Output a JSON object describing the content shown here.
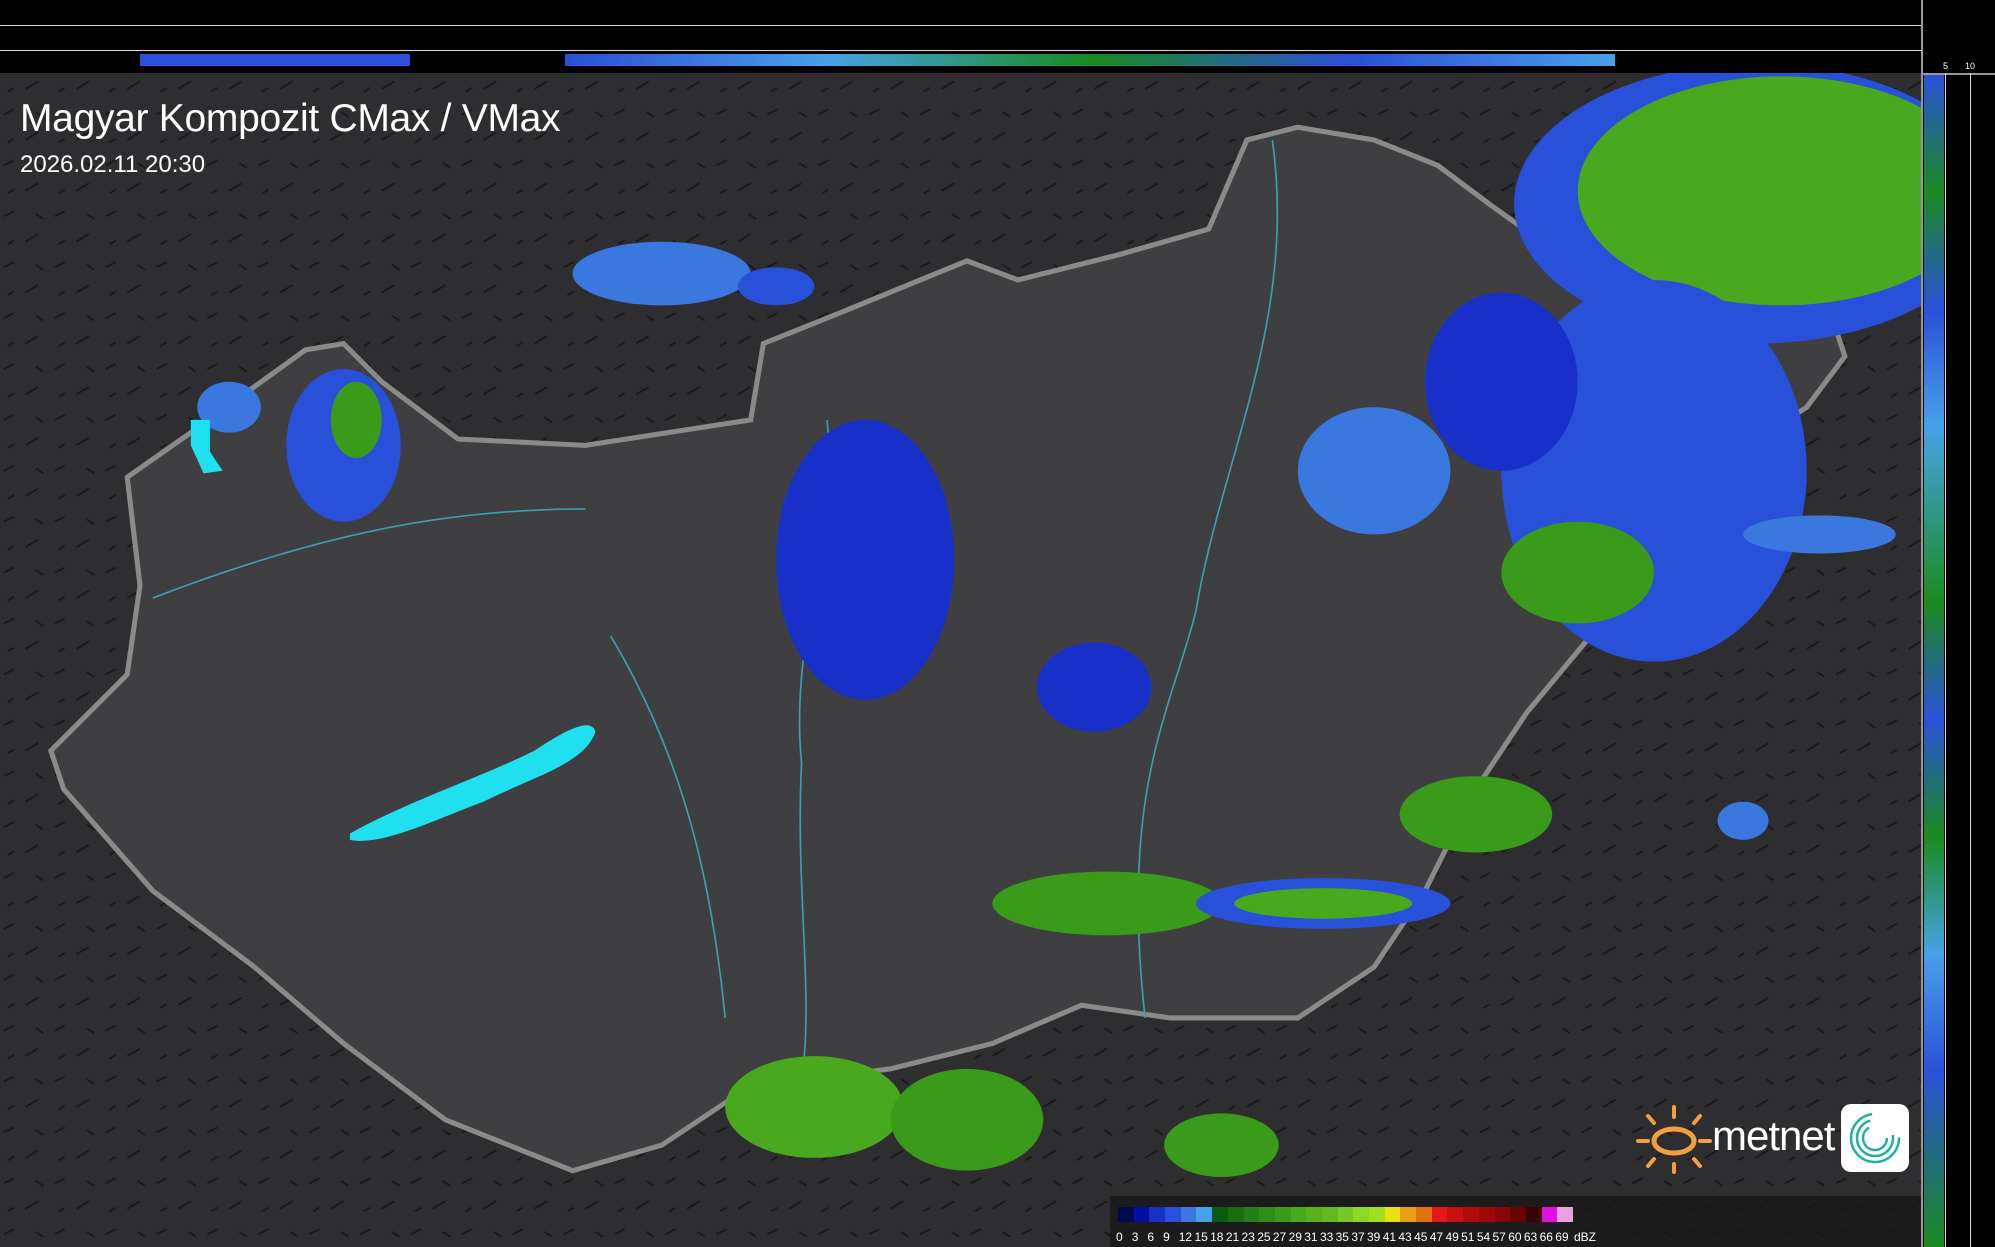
{
  "header": {
    "title": "Magyar Kompozit CMax / VMax",
    "timestamp": "2026.02.11 20:30"
  },
  "profile_axes": {
    "top_labels": [
      "10",
      "5"
    ],
    "right_labels": [
      "5",
      "10"
    ]
  },
  "logo": {
    "text": "metnet",
    "sun_color": "#f0a040",
    "icon_color": "#20b0a0"
  },
  "legend": {
    "unit": "dBZ",
    "labels": [
      "0",
      "3",
      "6",
      "9",
      "12",
      "15",
      "18",
      "21",
      "23",
      "25",
      "27",
      "29",
      "31",
      "33",
      "35",
      "37",
      "39",
      "41",
      "43",
      "45",
      "47",
      "49",
      "51",
      "54",
      "57",
      "60",
      "63",
      "66",
      "69"
    ],
    "colors": [
      "#000a50",
      "#0010a0",
      "#1830c8",
      "#2850d8",
      "#3a78e0",
      "#48a0e8",
      "#0a5a10",
      "#1a6e10",
      "#22801a",
      "#2e8e1a",
      "#3a9a1a",
      "#4aa81e",
      "#58b020",
      "#66b822",
      "#78c828",
      "#8ed628",
      "#a0e020",
      "#e8e010",
      "#e8a010",
      "#e07010",
      "#e01818",
      "#c81010",
      "#b00c0c",
      "#a00808",
      "#880606",
      "#680404",
      "#3a0202",
      "#e010e0",
      "#e8a0e0",
      "#80e0e8"
    ]
  },
  "colors": {
    "background": "#2b2b2e",
    "border": "#8a8a8a",
    "rivers": "#3aa0b0",
    "lakes": "#20e0f0"
  }
}
